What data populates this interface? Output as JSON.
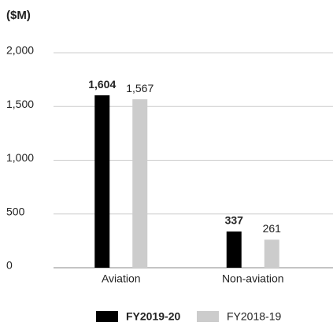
{
  "chart_data": {
    "type": "bar",
    "title": "($M)",
    "categories": [
      "Aviation",
      "Non-aviation"
    ],
    "series": [
      {
        "name": "FY2019-20",
        "color": "#000000",
        "values": [
          1604,
          337
        ],
        "value_labels": [
          "1,604",
          "337"
        ]
      },
      {
        "name": "FY2018-19",
        "color": "#cccccc",
        "values": [
          1567,
          261
        ],
        "value_labels": [
          "1,567",
          "261"
        ]
      }
    ],
    "ylim": [
      0,
      2000
    ],
    "yticks": [
      0,
      500,
      {
        "value": 1000,
        "label": "1,000"
      },
      {
        "value": 1500,
        "label": "1,500"
      },
      {
        "value": 2000,
        "label": "2,000"
      }
    ],
    "grid": true,
    "legend": "bottom"
  }
}
